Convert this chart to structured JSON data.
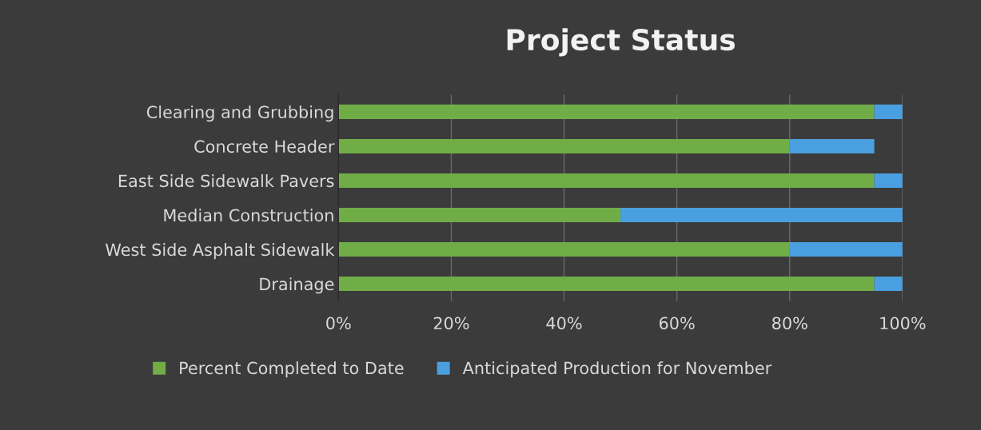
{
  "chart_data": {
    "type": "bar",
    "orientation": "horizontal",
    "stacked": true,
    "title": "Project Status",
    "categories": [
      "Clearing and Grubbing",
      "Concrete Header",
      "East Side Sidewalk Pavers",
      "Median Construction",
      "West Side Asphalt Sidewalk",
      "Drainage"
    ],
    "series": [
      {
        "name": "Percent Completed to Date",
        "color": "#70ad47",
        "values": [
          95,
          80,
          95,
          50,
          80,
          95
        ]
      },
      {
        "name": "Anticipated Production for November",
        "color": "#4a9fe0",
        "values": [
          5,
          15,
          5,
          50,
          20,
          5
        ]
      }
    ],
    "xlim": [
      0,
      100
    ],
    "xticks": [
      {
        "value": 0,
        "label": "0%"
      },
      {
        "value": 20,
        "label": "20%"
      },
      {
        "value": 40,
        "label": "40%"
      },
      {
        "value": 60,
        "label": "60%"
      },
      {
        "value": 80,
        "label": "80%"
      },
      {
        "value": 100,
        "label": "100%"
      }
    ],
    "grid": "x",
    "legend": "bottom"
  }
}
